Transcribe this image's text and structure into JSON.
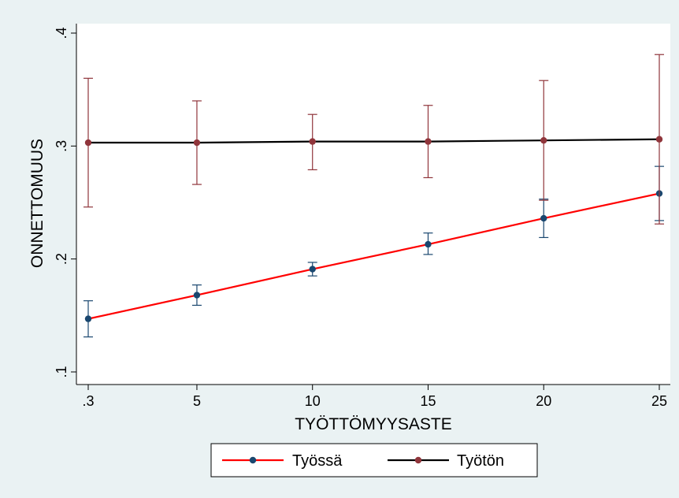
{
  "chart_data": {
    "type": "line",
    "xlabel": "TYÖTTÖMYYSASTE",
    "ylabel": "ONNETTOMUUS",
    "x": [
      0.3,
      5,
      10,
      15,
      20,
      25
    ],
    "xticks": [
      0.3,
      5,
      10,
      15,
      20,
      25
    ],
    "xtick_labels": [
      ".3",
      "5",
      "10",
      "15",
      "20",
      "25"
    ],
    "yticks": [
      0.1,
      0.2,
      0.3,
      0.4
    ],
    "ytick_labels": [
      ".1",
      ".2",
      ".3",
      ".4"
    ],
    "xlim": [
      0.3,
      25
    ],
    "ylim": [
      0.1,
      0.4
    ],
    "grid": false,
    "legend_position": "bottom",
    "series": [
      {
        "name": "Työssä",
        "line_color": "#ff0000",
        "marker_color": "#1a476f",
        "values": [
          0.147,
          0.168,
          0.191,
          0.213,
          0.236,
          0.258
        ],
        "ci_low": [
          0.131,
          0.159,
          0.185,
          0.204,
          0.219,
          0.234
        ],
        "ci_high": [
          0.163,
          0.177,
          0.197,
          0.223,
          0.253,
          0.282
        ]
      },
      {
        "name": "Työtön",
        "line_color": "#000000",
        "marker_color": "#90353b",
        "values": [
          0.303,
          0.303,
          0.304,
          0.304,
          0.305,
          0.306
        ],
        "ci_low": [
          0.246,
          0.266,
          0.279,
          0.272,
          0.252,
          0.231
        ],
        "ci_high": [
          0.36,
          0.34,
          0.328,
          0.336,
          0.358,
          0.381
        ]
      }
    ]
  }
}
